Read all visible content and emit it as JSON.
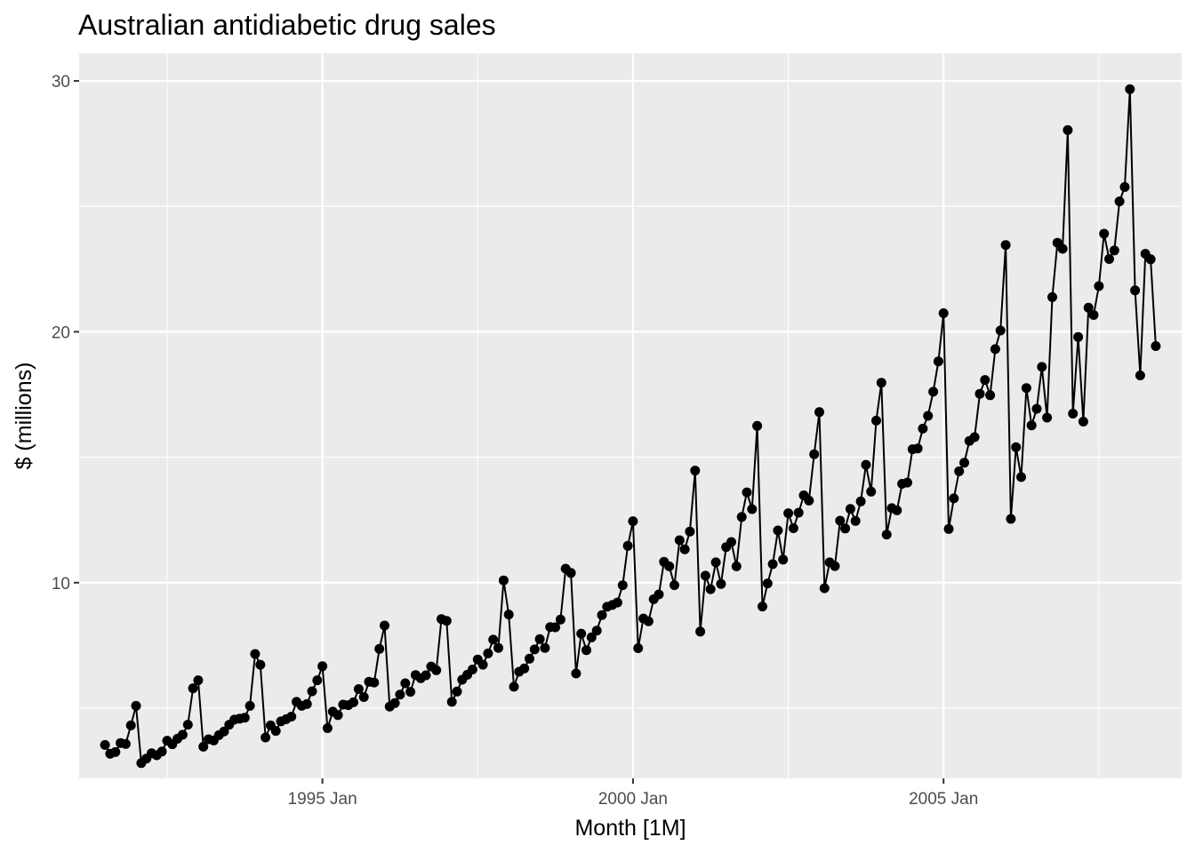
{
  "chart_data": {
    "type": "line",
    "title": "Australian antidiabetic drug sales",
    "xlabel": "Month [1M]",
    "ylabel": "$ (millions)",
    "x_start": "1991 Jul",
    "x_frequency": "monthly",
    "x_tick_labels": [
      "1995 Jan",
      "2000 Jan",
      "2005 Jan"
    ],
    "y_ticks": [
      10,
      20,
      30
    ],
    "ylim": [
      2.2,
      31.1
    ],
    "xlim": [
      "1991 Feb",
      "2008 Nov"
    ],
    "grid": true,
    "series": [
      {
        "values": [
          3.53,
          3.18,
          3.25,
          3.61,
          3.57,
          4.31,
          5.09,
          2.81,
          2.99,
          3.2,
          3.12,
          3.27,
          3.7,
          3.56,
          3.78,
          3.94,
          4.34,
          5.79,
          6.11,
          3.46,
          3.76,
          3.71,
          3.92,
          4.07,
          4.34,
          4.54,
          4.58,
          4.62,
          5.09,
          7.16,
          6.73,
          3.83,
          4.31,
          4.09,
          4.47,
          4.56,
          4.66,
          5.25,
          5.09,
          5.16,
          5.67,
          6.11,
          6.67,
          4.2,
          4.86,
          4.72,
          5.14,
          5.12,
          5.23,
          5.76,
          5.44,
          6.05,
          6.02,
          7.36,
          8.29,
          5.06,
          5.2,
          5.54,
          5.99,
          5.65,
          6.32,
          6.19,
          6.31,
          6.66,
          6.51,
          8.55,
          8.48,
          5.25,
          5.66,
          6.13,
          6.33,
          6.54,
          6.94,
          6.73,
          7.18,
          7.73,
          7.4,
          10.09,
          8.73,
          5.85,
          6.45,
          6.58,
          6.97,
          7.34,
          7.75,
          7.4,
          8.23,
          8.22,
          8.53,
          10.56,
          10.39,
          6.38,
          7.97,
          7.31,
          7.82,
          8.09,
          8.71,
          9.04,
          9.11,
          9.21,
          9.9,
          11.47,
          12.45,
          7.39,
          8.57,
          8.46,
          9.34,
          9.53,
          10.83,
          10.65,
          9.9,
          11.69,
          11.33,
          12.04,
          14.47,
          8.05,
          10.28,
          9.74,
          10.81,
          9.95,
          11.42,
          11.62,
          10.65,
          12.62,
          13.6,
          12.93,
          16.25,
          9.05,
          9.97,
          10.74,
          12.08,
          10.92,
          12.77,
          12.17,
          12.79,
          13.48,
          13.27,
          15.12,
          16.8,
          9.78,
          10.81,
          10.66,
          12.47,
          12.16,
          12.94,
          12.46,
          13.24,
          14.7,
          13.63,
          16.46,
          17.97,
          11.92,
          12.97,
          12.88,
          13.94,
          13.99,
          15.32,
          15.35,
          16.14,
          16.65,
          17.61,
          18.82,
          20.74,
          12.14,
          13.36,
          14.44,
          14.78,
          15.65,
          15.8,
          17.53,
          18.08,
          17.47,
          19.31,
          20.05,
          23.46,
          12.54,
          15.4,
          14.21,
          17.76,
          16.27,
          16.93,
          18.6,
          16.58,
          21.38,
          23.55,
          23.31,
          28.04,
          16.74,
          19.79,
          16.42,
          20.96,
          20.67,
          21.82,
          23.91,
          22.9,
          23.24,
          25.2,
          25.77,
          29.67,
          21.65,
          18.26,
          23.11,
          22.89,
          19.43
        ]
      }
    ]
  }
}
